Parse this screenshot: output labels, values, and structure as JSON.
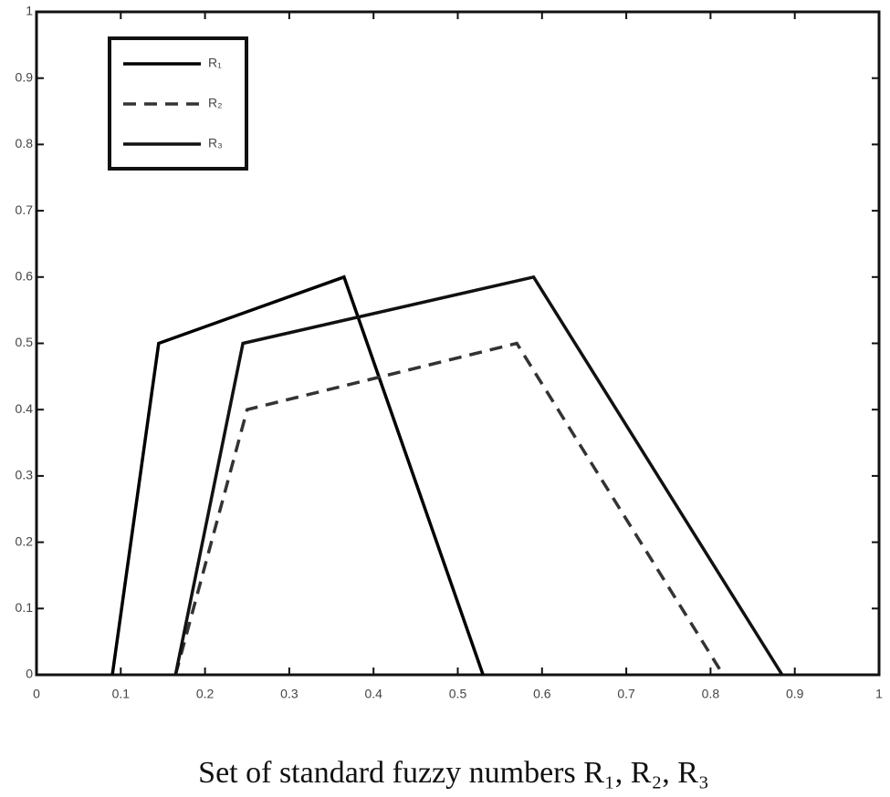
{
  "chart_data": {
    "type": "line",
    "caption": "Set of standard fuzzy numbers R₁, R₂, R₃",
    "xlim": [
      0,
      1
    ],
    "ylim": [
      0,
      1
    ],
    "xticks": [
      0,
      0.1,
      0.2,
      0.3,
      0.4,
      0.5,
      0.6,
      0.7,
      0.8,
      0.9,
      1
    ],
    "yticks": [
      0,
      0.1,
      0.2,
      0.3,
      0.4,
      0.5,
      0.6,
      0.7,
      0.8,
      0.9,
      1
    ],
    "legend": "upper left",
    "series": [
      {
        "name": "R₁",
        "color": "#000000",
        "dashed": false,
        "x": [
          0.09,
          0.145,
          0.365,
          0.53
        ],
        "values": [
          0,
          0.5,
          0.6,
          0
        ]
      },
      {
        "name": "R₂",
        "color": "#333333",
        "dashed": true,
        "x": [
          0.165,
          0.25,
          0.57,
          0.815
        ],
        "values": [
          0,
          0.4,
          0.5,
          0
        ]
      },
      {
        "name": "R₃",
        "color": "#111111",
        "dashed": false,
        "x": [
          0.165,
          0.245,
          0.59,
          0.885
        ],
        "values": [
          0,
          0.5,
          0.6,
          0
        ]
      }
    ]
  }
}
